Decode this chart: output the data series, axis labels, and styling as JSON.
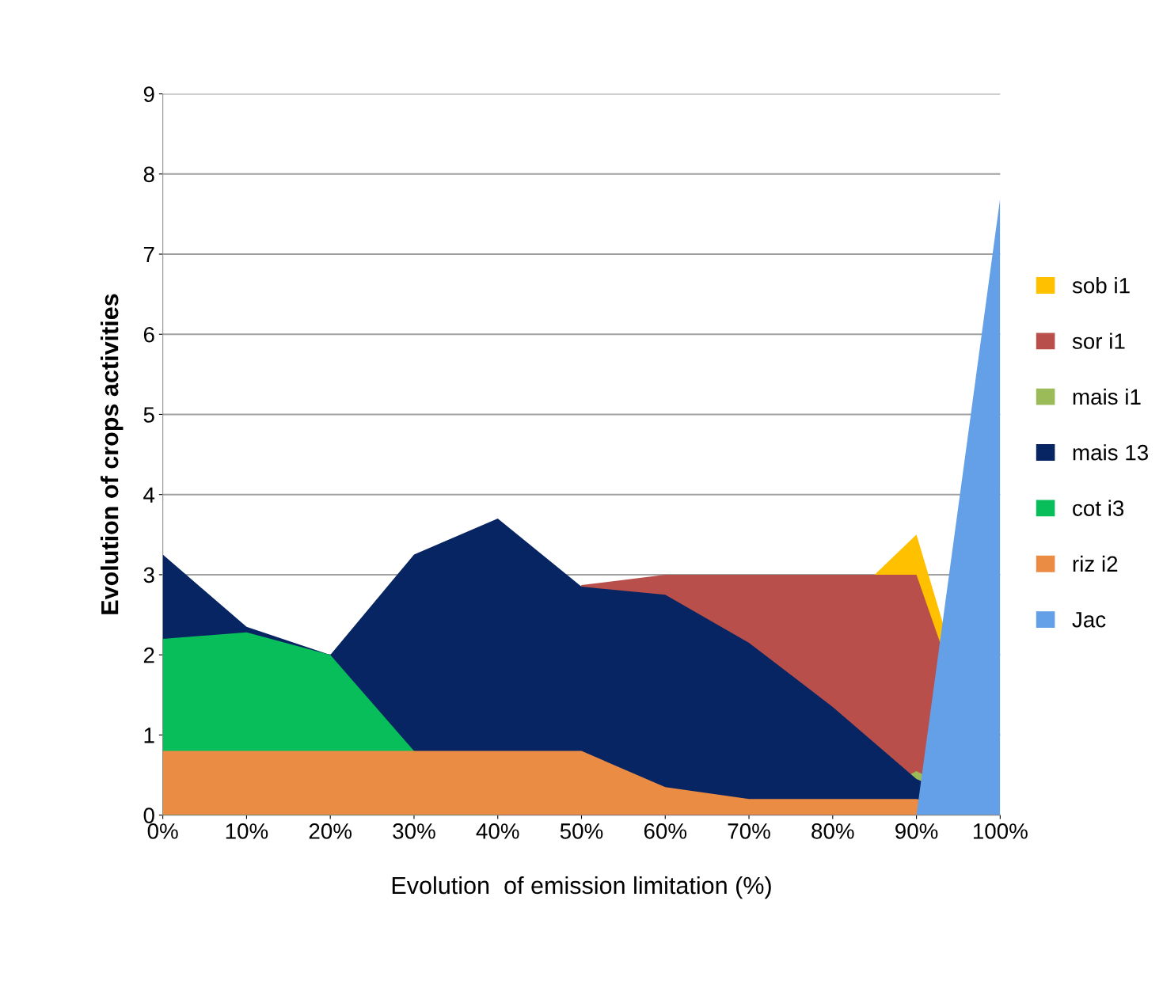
{
  "chart_data": {
    "type": "area",
    "xlabel": "Evolution  of emission limitation (%)",
    "ylabel": "Evolution of crops activities",
    "x": [
      0,
      10,
      20,
      30,
      40,
      50,
      60,
      70,
      80,
      90,
      100
    ],
    "series": [
      {
        "name": "sob i1",
        "color": "#ffc000",
        "x": [
          85,
          90,
          100
        ],
        "values": [
          3.0,
          3.5,
          0
        ]
      },
      {
        "name": "sor i1",
        "color": "#b94f4b",
        "values": [
          0,
          0,
          0,
          0,
          0,
          2.87,
          3.0,
          3.0,
          3.0,
          3.0,
          0
        ]
      },
      {
        "name": "mais i1",
        "color": "#9bbb59",
        "values": [
          0,
          0,
          0,
          0,
          0,
          0,
          0,
          0,
          0,
          0.55,
          0
        ]
      },
      {
        "name": "mais 13",
        "color": "#072562",
        "values": [
          3.25,
          2.35,
          2.0,
          3.25,
          3.7,
          2.85,
          2.75,
          2.15,
          1.35,
          0.45,
          0
        ]
      },
      {
        "name": "cot i3",
        "color": "#08be5a",
        "values": [
          2.2,
          2.28,
          2.0,
          0.8,
          0,
          0,
          0,
          0,
          0,
          0,
          0
        ]
      },
      {
        "name": "riz i2",
        "color": "#ea8c44",
        "values": [
          0.8,
          0.8,
          0.8,
          0.8,
          0.8,
          0.8,
          0.35,
          0.2,
          0.2,
          0.2,
          0
        ]
      },
      {
        "name": "Jac",
        "color": "#64a0e8",
        "values": [
          0,
          0,
          0,
          0,
          0,
          0,
          0,
          0,
          0,
          0,
          7.7
        ]
      }
    ],
    "xlim": [
      0,
      100
    ],
    "xticks": [
      {
        "value": 0,
        "label": "0%"
      },
      {
        "value": 10,
        "label": "10%"
      },
      {
        "value": 20,
        "label": "20%"
      },
      {
        "value": 30,
        "label": "30%"
      },
      {
        "value": 40,
        "label": "40%"
      },
      {
        "value": 50,
        "label": "50%"
      },
      {
        "value": 60,
        "label": "60%"
      },
      {
        "value": 70,
        "label": "70%"
      },
      {
        "value": 80,
        "label": "80%"
      },
      {
        "value": 90,
        "label": "90%"
      },
      {
        "value": 100,
        "label": "100%"
      }
    ],
    "ylim": [
      0,
      9
    ],
    "yticks": [
      0,
      1,
      2,
      3,
      4,
      5,
      6,
      7,
      8,
      9
    ],
    "grid": "y",
    "legend": "right"
  }
}
